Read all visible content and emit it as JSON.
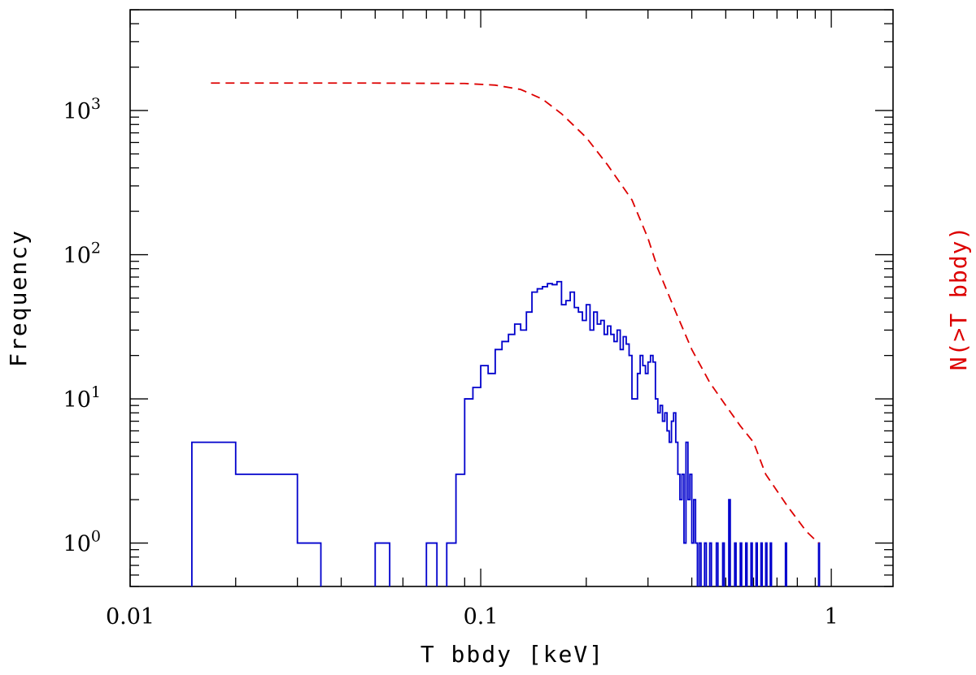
{
  "chart_data": {
    "type": "line",
    "xlabel": "T bbdy [keV]",
    "ylabel": "Frequency",
    "ylabel_right": "N(>T bbdy)",
    "x_scale": "log",
    "y_scale": "log",
    "xlim": [
      0.01,
      1.5
    ],
    "ylim": [
      0.5,
      5000
    ],
    "x_ticks": [
      {
        "value": 0.01,
        "label": "0.01"
      },
      {
        "value": 0.1,
        "label": "0.1"
      },
      {
        "value": 1,
        "label": "1"
      }
    ],
    "y_ticks": [
      {
        "value": 1,
        "base": "10",
        "exp": "0"
      },
      {
        "value": 10,
        "base": "10",
        "exp": "1"
      },
      {
        "value": 100,
        "base": "10",
        "exp": "2"
      },
      {
        "value": 1000,
        "base": "10",
        "exp": "3"
      }
    ],
    "grid": false,
    "series": [
      {
        "style": "histogram",
        "color": "#0000cc",
        "bins": [
          [
            0.015,
            0.02,
            5
          ],
          [
            0.02,
            0.03,
            3
          ],
          [
            0.03,
            0.035,
            1
          ],
          [
            0.05,
            0.055,
            1
          ],
          [
            0.07,
            0.075,
            1
          ],
          [
            0.08,
            0.085,
            1
          ],
          [
            0.085,
            0.09,
            3
          ],
          [
            0.09,
            0.095,
            10
          ],
          [
            0.095,
            0.1,
            12
          ],
          [
            0.1,
            0.105,
            17
          ],
          [
            0.105,
            0.11,
            15
          ],
          [
            0.11,
            0.115,
            22
          ],
          [
            0.115,
            0.12,
            25
          ],
          [
            0.12,
            0.125,
            28
          ],
          [
            0.125,
            0.13,
            33
          ],
          [
            0.13,
            0.135,
            30
          ],
          [
            0.135,
            0.14,
            40
          ],
          [
            0.14,
            0.145,
            55
          ],
          [
            0.145,
            0.15,
            58
          ],
          [
            0.15,
            0.155,
            60
          ],
          [
            0.155,
            0.16,
            63
          ],
          [
            0.16,
            0.165,
            62
          ],
          [
            0.165,
            0.17,
            65
          ],
          [
            0.17,
            0.175,
            45
          ],
          [
            0.175,
            0.18,
            48
          ],
          [
            0.18,
            0.185,
            55
          ],
          [
            0.185,
            0.19,
            43
          ],
          [
            0.19,
            0.195,
            40
          ],
          [
            0.195,
            0.2,
            35
          ],
          [
            0.2,
            0.205,
            45
          ],
          [
            0.205,
            0.21,
            30
          ],
          [
            0.21,
            0.215,
            40
          ],
          [
            0.215,
            0.22,
            33
          ],
          [
            0.22,
            0.225,
            35
          ],
          [
            0.225,
            0.23,
            28
          ],
          [
            0.23,
            0.235,
            32
          ],
          [
            0.235,
            0.24,
            28
          ],
          [
            0.24,
            0.245,
            25
          ],
          [
            0.245,
            0.25,
            30
          ],
          [
            0.25,
            0.255,
            22
          ],
          [
            0.255,
            0.26,
            27
          ],
          [
            0.26,
            0.265,
            24
          ],
          [
            0.265,
            0.27,
            20
          ],
          [
            0.27,
            0.28,
            10
          ],
          [
            0.28,
            0.285,
            15
          ],
          [
            0.285,
            0.29,
            20
          ],
          [
            0.29,
            0.295,
            17
          ],
          [
            0.295,
            0.3,
            15
          ],
          [
            0.3,
            0.305,
            18
          ],
          [
            0.305,
            0.31,
            20
          ],
          [
            0.31,
            0.315,
            18
          ],
          [
            0.315,
            0.32,
            10
          ],
          [
            0.32,
            0.325,
            8
          ],
          [
            0.325,
            0.33,
            9
          ],
          [
            0.33,
            0.335,
            7
          ],
          [
            0.335,
            0.34,
            8
          ],
          [
            0.34,
            0.345,
            6
          ],
          [
            0.345,
            0.35,
            5
          ],
          [
            0.35,
            0.355,
            7
          ],
          [
            0.355,
            0.36,
            8
          ],
          [
            0.36,
            0.365,
            5
          ],
          [
            0.365,
            0.37,
            3
          ],
          [
            0.37,
            0.375,
            2
          ],
          [
            0.375,
            0.38,
            3
          ],
          [
            0.38,
            0.385,
            1
          ],
          [
            0.385,
            0.39,
            5
          ],
          [
            0.39,
            0.395,
            2
          ],
          [
            0.395,
            0.4,
            3
          ],
          [
            0.4,
            0.405,
            1
          ],
          [
            0.405,
            0.41,
            2
          ],
          [
            0.41,
            0.415,
            1
          ],
          [
            0.42,
            0.425,
            1
          ],
          [
            0.435,
            0.44,
            1
          ],
          [
            0.45,
            0.455,
            1
          ],
          [
            0.47,
            0.475,
            1
          ],
          [
            0.49,
            0.495,
            1
          ],
          [
            0.51,
            0.515,
            2
          ],
          [
            0.53,
            0.535,
            1
          ],
          [
            0.55,
            0.555,
            1
          ],
          [
            0.57,
            0.575,
            1
          ],
          [
            0.59,
            0.595,
            1
          ],
          [
            0.61,
            0.615,
            1
          ],
          [
            0.63,
            0.635,
            1
          ],
          [
            0.65,
            0.655,
            1
          ],
          [
            0.67,
            0.675,
            1
          ],
          [
            0.74,
            0.745,
            1
          ],
          [
            0.92,
            0.925,
            1
          ]
        ]
      },
      {
        "style": "dashed",
        "color": "#dd0000",
        "x": [
          0.017,
          0.05,
          0.09,
          0.11,
          0.13,
          0.15,
          0.17,
          0.2,
          0.23,
          0.27,
          0.3,
          0.32,
          0.36,
          0.4,
          0.45,
          0.5,
          0.55,
          0.6,
          0.65,
          0.75,
          0.85,
          0.92
        ],
        "y": [
          1550,
          1550,
          1540,
          1500,
          1400,
          1200,
          950,
          650,
          420,
          240,
          130,
          80,
          40,
          22,
          13,
          9,
          6.5,
          5,
          3,
          1.8,
          1.2,
          1
        ]
      }
    ]
  }
}
